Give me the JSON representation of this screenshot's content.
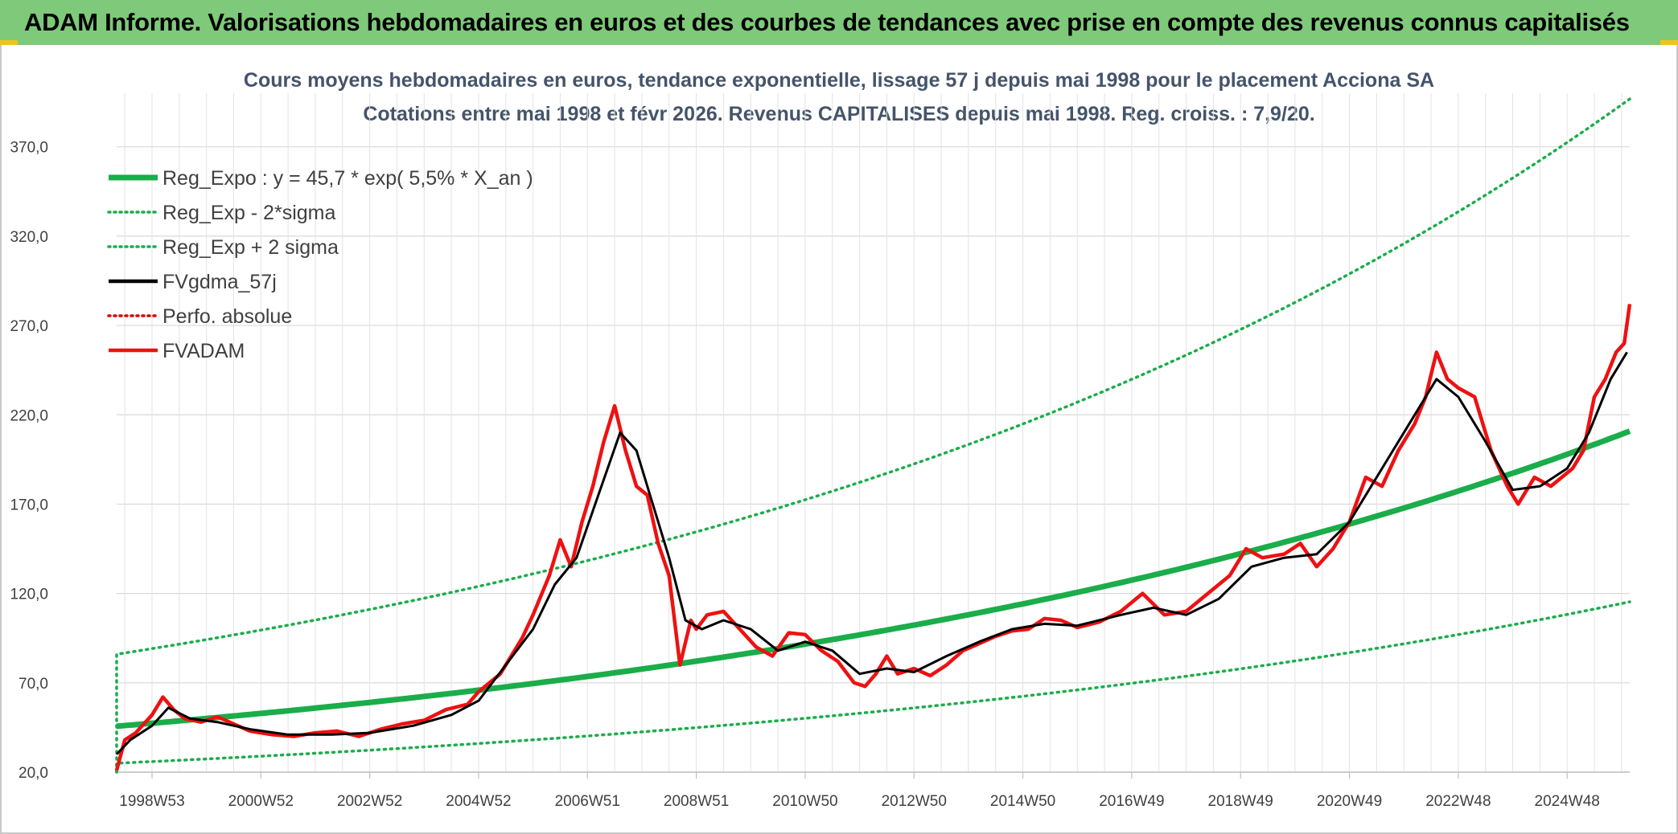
{
  "header": {
    "title": "ADAM Informe. Valorisations hebdomadaires en euros et des courbes de tendances avec prise en compte des revenus connus capitalisés"
  },
  "chart_data": {
    "type": "line",
    "title_line1": "Cours moyens hebdomadaires en euros, tendance exponentielle, lissage 57 j depuis mai 1998 pour le placement Acciona SA",
    "title_line2": "Cotations entre mai 1998 et févr 2026. Revenus CAPITALISES depuis mai 1998. Reg. croiss. : 7,9/20.",
    "y_ticks": [
      "20,0",
      "70,0",
      "120,0",
      "170,0",
      "220,0",
      "270,0",
      "320,0",
      "370,0"
    ],
    "ylim": [
      20,
      400
    ],
    "x_ticks": [
      {
        "label": "1998W53",
        "year": 1999.0
      },
      {
        "label": "2000W52",
        "year": 2001.0
      },
      {
        "label": "2002W52",
        "year": 2003.0
      },
      {
        "label": "2004W52",
        "year": 2005.0
      },
      {
        "label": "2006W51",
        "year": 2007.0
      },
      {
        "label": "2008W51",
        "year": 2009.0
      },
      {
        "label": "2010W50",
        "year": 2011.0
      },
      {
        "label": "2012W50",
        "year": 2013.0
      },
      {
        "label": "2014W50",
        "year": 2015.0
      },
      {
        "label": "2016W49",
        "year": 2017.0
      },
      {
        "label": "2018W49",
        "year": 2019.0
      },
      {
        "label": "2020W49",
        "year": 2021.0
      },
      {
        "label": "2022W48",
        "year": 2023.0
      },
      {
        "label": "2024W48",
        "year": 2025.0
      }
    ],
    "xlim": [
      1998.35,
      2026.15
    ],
    "grid": true,
    "legend": [
      {
        "name": "Reg_Expo : y = 45,7 * exp( 5,5% *  X_an )",
        "color": "#1aad4a",
        "style": "solid-thick"
      },
      {
        "name": "Reg_Exp - 2*sigma",
        "color": "#1aad4a",
        "style": "dotted"
      },
      {
        "name": "Reg_Exp + 2 sigma",
        "color": "#1aad4a",
        "style": "dotted"
      },
      {
        "name": "FVgdma_57j",
        "color": "#000000",
        "style": "solid"
      },
      {
        "name": "Perfo. absolue",
        "color": "#e00000",
        "style": "dotted"
      },
      {
        "name": "FVADAM",
        "color": "#ee1111",
        "style": "solid"
      }
    ],
    "regression": {
      "a": 45.7,
      "rate": 0.055,
      "t0": 1998.35,
      "t_end": 2026.15,
      "lower_start": 25,
      "upper_start": 86
    },
    "series": [
      {
        "name": "FVADAM",
        "x": [
          1998.35,
          1998.5,
          1998.7,
          1999.0,
          1999.2,
          1999.4,
          1999.6,
          1999.9,
          2000.2,
          2000.5,
          2000.8,
          2001.2,
          2001.6,
          2002.0,
          2002.4,
          2002.8,
          2003.2,
          2003.6,
          2004.0,
          2004.4,
          2004.8,
          2005.0,
          2005.4,
          2005.8,
          2006.0,
          2006.3,
          2006.5,
          2006.7,
          2006.9,
          2007.1,
          2007.3,
          2007.5,
          2007.7,
          2007.9,
          2008.1,
          2008.3,
          2008.5,
          2008.7,
          2008.9,
          2009.0,
          2009.2,
          2009.5,
          2009.8,
          2010.1,
          2010.4,
          2010.7,
          2011.0,
          2011.3,
          2011.6,
          2011.9,
          2012.1,
          2012.3,
          2012.5,
          2012.7,
          2013.0,
          2013.3,
          2013.6,
          2013.9,
          2014.2,
          2014.5,
          2014.8,
          2015.1,
          2015.4,
          2015.7,
          2016.0,
          2016.4,
          2016.8,
          2017.2,
          2017.6,
          2018.0,
          2018.4,
          2018.8,
          2019.1,
          2019.4,
          2019.8,
          2020.1,
          2020.4,
          2020.7,
          2021.0,
          2021.3,
          2021.6,
          2021.9,
          2022.2,
          2022.4,
          2022.6,
          2022.8,
          2023.0,
          2023.3,
          2023.6,
          2023.9,
          2024.1,
          2024.4,
          2024.7,
          2024.9,
          2025.1,
          2025.3,
          2025.5,
          2025.7,
          2025.9,
          2026.05,
          2026.15
        ],
        "values": [
          21,
          38,
          42,
          52,
          62,
          55,
          50,
          48,
          51,
          47,
          43,
          41,
          40,
          42,
          43,
          40,
          44,
          47,
          49,
          55,
          58,
          65,
          75,
          95,
          108,
          130,
          150,
          135,
          160,
          180,
          205,
          225,
          200,
          180,
          175,
          148,
          130,
          80,
          105,
          100,
          108,
          110,
          100,
          90,
          85,
          98,
          97,
          88,
          82,
          70,
          68,
          75,
          85,
          75,
          78,
          74,
          80,
          88,
          92,
          96,
          99,
          100,
          106,
          105,
          101,
          104,
          110,
          120,
          108,
          110,
          120,
          130,
          145,
          140,
          142,
          148,
          135,
          145,
          160,
          185,
          180,
          200,
          215,
          230,
          255,
          240,
          235,
          230,
          200,
          180,
          170,
          185,
          180,
          185,
          190,
          200,
          230,
          240,
          255,
          260,
          282
        ]
      },
      {
        "name": "FVgdma_57j",
        "x": [
          1998.35,
          1998.6,
          1999.0,
          1999.3,
          1999.7,
          2000.2,
          2000.8,
          2001.5,
          2002.3,
          2003.0,
          2003.8,
          2004.5,
          2005.0,
          2005.5,
          2006.0,
          2006.4,
          2006.8,
          2007.2,
          2007.6,
          2007.9,
          2008.2,
          2008.5,
          2008.8,
          2009.1,
          2009.5,
          2010.0,
          2010.5,
          2011.0,
          2011.5,
          2012.0,
          2012.5,
          2013.0,
          2013.6,
          2014.2,
          2014.8,
          2015.4,
          2016.0,
          2016.8,
          2017.4,
          2018.0,
          2018.6,
          2019.2,
          2019.8,
          2020.4,
          2021.0,
          2021.6,
          2022.2,
          2022.6,
          2023.0,
          2023.5,
          2024.0,
          2024.5,
          2025.0,
          2025.4,
          2025.8,
          2026.1
        ],
        "values": [
          30,
          38,
          46,
          56,
          50,
          48,
          44,
          41,
          41,
          42,
          46,
          52,
          60,
          80,
          100,
          125,
          140,
          175,
          210,
          200,
          170,
          140,
          105,
          100,
          105,
          100,
          88,
          93,
          88,
          75,
          78,
          76,
          85,
          93,
          100,
          103,
          102,
          108,
          112,
          108,
          117,
          135,
          140,
          142,
          160,
          190,
          220,
          240,
          230,
          205,
          178,
          180,
          190,
          210,
          240,
          255
        ]
      }
    ]
  }
}
